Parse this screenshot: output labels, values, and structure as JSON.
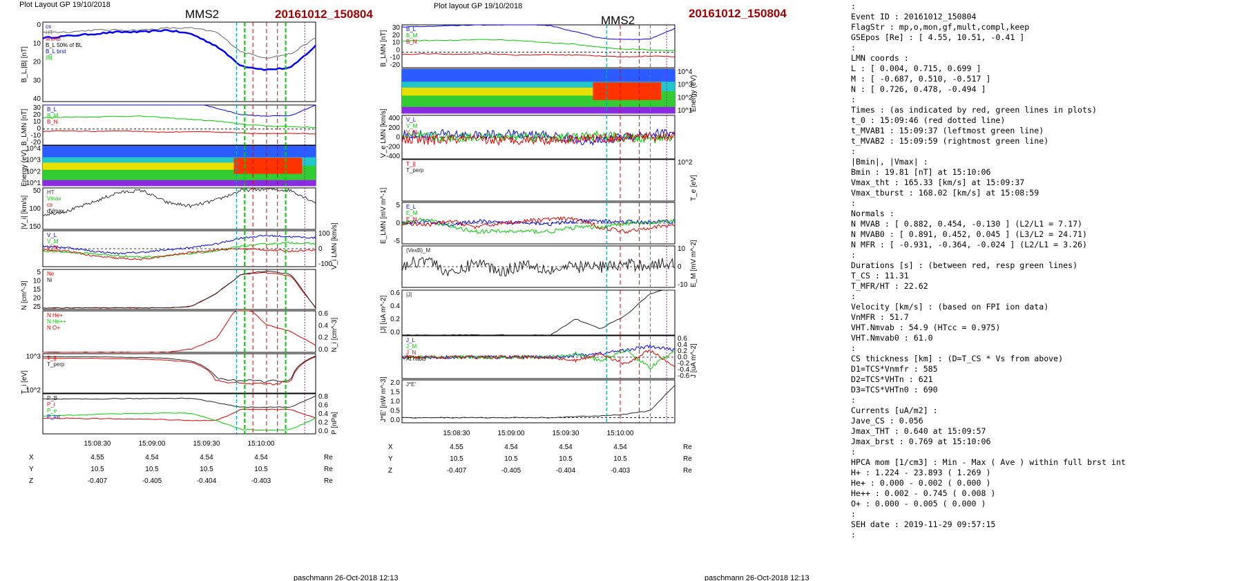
{
  "figure_left": {
    "header": "Plot Layout GP 19/10/2018",
    "sc": "MMS2",
    "event": "20161012_150804",
    "footer": "paschmann 26-Oct-2018 12:13"
  },
  "figure_mid": {
    "header": "Plot layout GP 19/10/2018",
    "sc": "MMS2",
    "event": "20161012_150804",
    "footer": "paschmann 26-Oct-2018 12:13"
  },
  "time_ticks": [
    "15:08:30",
    "15:09:00",
    "15:09:30",
    "15:10:00"
  ],
  "orbit_rows": [
    {
      "label": "X",
      "values": [
        "4.55",
        "4.54",
        "4.54",
        "4.54"
      ],
      "unit": "Re"
    },
    {
      "label": "Y",
      "values": [
        "10.5",
        "10.5",
        "10.5",
        "10.5"
      ],
      "unit": "Re"
    },
    {
      "label": "Z",
      "values": [
        "-0.407",
        "-0.405",
        "-0.404",
        "-0.403"
      ],
      "unit": "Re"
    }
  ],
  "orbit_rows_mid": [
    {
      "label": "X",
      "values": [
        "4.55",
        "4.54",
        "4.54",
        "4.54"
      ],
      "unit": "Re"
    },
    {
      "label": "Y",
      "values": [
        "10.5",
        "10.5",
        "10.5",
        "10.5"
      ],
      "unit": "Re"
    },
    {
      "label": "Z",
      "values": [
        "-0.407",
        "-0.405",
        "-0.404",
        "-0.403"
      ],
      "unit": "Re"
    }
  ],
  "colors": {
    "red": "#e00000",
    "green": "#00cc00",
    "blue": "#0000ff",
    "black": "#000000",
    "magenta": "#cc00cc",
    "title_red": "#a00000",
    "cyan": "#00aaaa"
  },
  "chart_data": [
    {
      "type": "line",
      "ylabel": "B_L,|B| [nT]",
      "ylim": [
        0,
        40
      ],
      "yticks": [
        "0",
        "10",
        "20",
        "30",
        "40"
      ],
      "legend": [
        "cs",
        "HT",
        "MVAB",
        "B_L 50% of BL",
        "B_L brst",
        "|B|"
      ],
      "series": [
        {
          "name": "B_L brst",
          "values": [
            32,
            33,
            34,
            35,
            35,
            36,
            34,
            28,
            18,
            16,
            17,
            28
          ]
        },
        {
          "name": "|B|",
          "values": [
            35,
            35,
            36,
            36,
            36,
            37,
            37,
            35,
            25,
            22,
            24,
            32
          ]
        }
      ]
    },
    {
      "type": "line",
      "ylabel": "B_LMN [nT]",
      "ylim": [
        -20,
        30
      ],
      "yticks": [
        "30",
        "20",
        "10",
        "0",
        "-10",
        "-20"
      ],
      "legend": [
        "B_L",
        "B_M",
        "B_N"
      ],
      "series": [
        {
          "name": "B_L",
          "values": [
            32,
            33,
            34,
            35,
            35,
            36,
            34,
            26,
            18,
            16,
            17,
            30
          ]
        },
        {
          "name": "B_M",
          "values": [
            14,
            15,
            15,
            16,
            16,
            14,
            12,
            10,
            6,
            4,
            3,
            2
          ]
        },
        {
          "name": "B_N",
          "values": [
            -3,
            -2,
            -3,
            -2,
            -3,
            -4,
            -3,
            -4,
            -5,
            -6,
            -5,
            -6
          ]
        }
      ]
    },
    {
      "type": "heatmap",
      "ylabel": "Energy (eV)",
      "yticks": [
        "10^4",
        "10^3",
        "10^2",
        "10^1"
      ]
    },
    {
      "type": "line",
      "ylabel": "|V_i| [km/s]",
      "ylim": [
        0,
        170
      ],
      "yticks": [
        "50",
        "100",
        "150"
      ],
      "legend": [
        "HT",
        "Vmax",
        "cs",
        "dVmax"
      ],
      "series": [
        {
          "name": "|V_i|",
          "values": [
            60,
            75,
            110,
            150,
            160,
            110,
            95,
            120,
            160,
            165,
            160,
            110
          ]
        }
      ]
    },
    {
      "type": "line",
      "ylabel": "V_i LMN [km/s]",
      "ylim": [
        -150,
        150
      ],
      "yticks": [
        "100",
        "0",
        "-100"
      ],
      "legend": [
        "V_L",
        "V_M",
        "V_N"
      ],
      "series": [
        {
          "name": "V_L",
          "values": [
            20,
            10,
            -20,
            -40,
            -30,
            -10,
            10,
            40,
            90,
            110,
            100,
            90
          ]
        },
        {
          "name": "V_M",
          "values": [
            -20,
            -30,
            -40,
            -60,
            -70,
            -60,
            -40,
            -20,
            20,
            40,
            50,
            40
          ]
        },
        {
          "name": "V_N",
          "values": [
            -10,
            -20,
            -60,
            -80,
            -90,
            -60,
            -30,
            -10,
            0,
            -10,
            -20,
            -10
          ]
        }
      ]
    },
    {
      "type": "line",
      "ylabel": "N [cm^-3]",
      "ylim": [
        0,
        25
      ],
      "yticks": [
        "5",
        "10",
        "15",
        "20",
        "25"
      ],
      "legend": [
        "Ne",
        "Ni"
      ],
      "series": [
        {
          "name": "Ne",
          "values": [
            1,
            1,
            1,
            1,
            1,
            1,
            2,
            10,
            22,
            23,
            21,
            1
          ]
        },
        {
          "name": "Ni",
          "values": [
            1,
            1,
            1,
            1,
            1,
            1,
            2,
            10,
            22,
            24,
            22,
            1
          ]
        }
      ]
    },
    {
      "type": "line",
      "ylabel": "N_i [cm^-3]",
      "ylim": [
        0,
        0.6
      ],
      "yticks": [
        "0.6",
        "0.4",
        "0.2",
        "0.0"
      ],
      "legend": [
        "N He+",
        "N He++",
        "N O+"
      ],
      "series": [
        {
          "name": "N He++",
          "values": [
            0,
            0,
            0,
            0,
            0,
            0,
            0.05,
            0.2,
            0.745,
            0.4,
            0.3,
            0.1
          ]
        }
      ]
    },
    {
      "type": "line",
      "ylabel": "T_i [eV]",
      "ylim": [
        50,
        2000
      ],
      "scale": "log",
      "yticks": [
        "10^3",
        "10^2"
      ],
      "legend": [
        "T_||",
        "T_perp"
      ],
      "series": [
        {
          "name": "T_||",
          "values": [
            1300,
            1300,
            1300,
            1250,
            1200,
            1100,
            900,
            150,
            130,
            120,
            140,
            1500
          ]
        },
        {
          "name": "T_perp",
          "values": [
            1500,
            1500,
            1500,
            1450,
            1400,
            1300,
            1000,
            200,
            160,
            150,
            170,
            1600
          ]
        }
      ]
    },
    {
      "type": "line",
      "ylabel": "P [nPa]",
      "ylim": [
        0,
        0.9
      ],
      "yticks": [
        "0.8",
        "0.6",
        "0.4",
        "0.2",
        "0.0"
      ],
      "legend": [
        "P_B",
        "P_i",
        "P_e",
        "P_tot"
      ],
      "series": [
        {
          "name": "P_tot",
          "values": [
            0.78,
            0.78,
            0.78,
            0.79,
            0.79,
            0.8,
            0.8,
            0.7,
            0.6,
            0.6,
            0.6,
            0.85
          ]
        },
        {
          "name": "P_i",
          "values": [
            0.35,
            0.35,
            0.34,
            0.34,
            0.33,
            0.32,
            0.3,
            0.3,
            0.55,
            0.55,
            0.55,
            0.35
          ]
        },
        {
          "name": "P_B",
          "values": [
            0.4,
            0.42,
            0.44,
            0.45,
            0.46,
            0.47,
            0.46,
            0.3,
            0.1,
            0.08,
            0.1,
            0.35
          ]
        }
      ]
    },
    {
      "type": "line",
      "ylabel": "B_LMN [nT]",
      "ylim": [
        -20,
        35
      ],
      "yticks": [
        "30",
        "20",
        "10",
        "0",
        "-10",
        "-20"
      ],
      "legend": [
        "B_L",
        "B_M",
        "B_N"
      ],
      "series": [
        {
          "name": "B_L",
          "values": [
            32,
            33,
            34,
            35,
            35,
            36,
            34,
            26,
            18,
            16,
            17,
            30
          ]
        },
        {
          "name": "B_M",
          "values": [
            14,
            15,
            15,
            16,
            16,
            14,
            12,
            10,
            6,
            4,
            3,
            2
          ]
        },
        {
          "name": "B_N",
          "values": [
            -3,
            -2,
            -3,
            -2,
            -3,
            -4,
            -3,
            -4,
            -5,
            -6,
            -5,
            -6
          ]
        }
      ]
    },
    {
      "type": "heatmap",
      "ylabel": "Energy (eV)",
      "yticks": [
        "10^4",
        "10^3",
        "10^2",
        "10^1"
      ]
    },
    {
      "type": "line",
      "ylabel": "V_e LMN [km/s]",
      "ylim": [
        -400,
        400
      ],
      "yticks": [
        "400",
        "200",
        "0",
        "-200",
        "-400"
      ],
      "legend": [
        "V_L",
        "V_M",
        "V_N"
      ],
      "series": [
        {
          "name": "V_L",
          "values": [
            50,
            40,
            60,
            30,
            50,
            40,
            30,
            -50,
            -80,
            20,
            60,
            90
          ]
        },
        {
          "name": "V_M",
          "values": [
            0,
            20,
            -20,
            10,
            0,
            20,
            -10,
            0,
            30,
            -20,
            -40,
            30
          ]
        },
        {
          "name": "V_N",
          "values": [
            -50,
            -60,
            -40,
            -50,
            -60,
            -40,
            -50,
            -30,
            -20,
            -10,
            10,
            20
          ]
        }
      ]
    },
    {
      "type": "line",
      "ylabel": "T_e [eV]",
      "scale": "log",
      "yticks": [
        "10^2"
      ],
      "legend": [
        "T_||",
        "T_perp"
      ],
      "series": [
        {
          "name": "T_||",
          "values": [
            700,
            700,
            690,
            680,
            400,
            350,
            300,
            180,
            60,
            55,
            60,
            500
          ]
        },
        {
          "name": "T_perp",
          "values": [
            720,
            720,
            710,
            700,
            420,
            360,
            310,
            190,
            65,
            60,
            65,
            520
          ]
        }
      ]
    },
    {
      "type": "line",
      "ylabel": "E_LMN [mV m^-1]",
      "ylim": [
        -5,
        5
      ],
      "yticks": [
        "5",
        "0",
        "-5"
      ],
      "legend": [
        "E_L",
        "E_M",
        "E_N"
      ],
      "series": [
        {
          "name": "E_L",
          "values": [
            0,
            0.5,
            -0.5,
            0.5,
            0,
            0.3,
            -0.2,
            0.4,
            0.5,
            0.3,
            0.2,
            0.5
          ]
        },
        {
          "name": "E_M",
          "values": [
            0,
            1,
            -1,
            -2,
            -2,
            -2,
            -2,
            -1,
            -1,
            0,
            0,
            0.5
          ]
        },
        {
          "name": "E_N",
          "values": [
            0,
            -0.5,
            0.5,
            -1,
            0,
            0.5,
            1,
            1,
            -1,
            -2,
            -1,
            -0.5
          ]
        }
      ]
    },
    {
      "type": "line",
      "ylabel": "E_M [mV m^-2]",
      "ylim": [
        -12,
        12
      ],
      "yticks": [
        "10",
        "0",
        "-10"
      ],
      "legend": [
        "(VexB)_M"
      ],
      "series": [
        {
          "name": "(VexB)_M",
          "values": [
            0,
            5,
            -5,
            3,
            -3,
            2,
            -2,
            0,
            0,
            1,
            1,
            2
          ]
        }
      ]
    },
    {
      "type": "line",
      "ylabel": "|J| [uA m^-2]",
      "ylim": [
        0,
        0.7
      ],
      "yticks": [
        "0.6",
        "0.4",
        "0.2",
        "0.0"
      ],
      "legend": [
        "|J|"
      ],
      "series": [
        {
          "name": "|J|",
          "values": [
            0,
            0,
            0,
            0,
            0,
            0,
            0,
            0.25,
            0.1,
            0.3,
            0.64,
            0.769
          ]
        }
      ]
    },
    {
      "type": "line",
      "ylabel": "J [uA m^-2]",
      "ylim": [
        -0.6,
        0.6
      ],
      "yticks": [
        "0.6",
        "0.4",
        "0.2",
        "0.0",
        "-0.2",
        "-0.4",
        "-0.6"
      ],
      "legend": [
        "J_L",
        "J_M",
        "J_N",
        "At maxJ"
      ],
      "series": [
        {
          "name": "J_L",
          "values": [
            0,
            0,
            0,
            0,
            0,
            0,
            0,
            0.05,
            0.1,
            0.2,
            0.3,
            0.2
          ]
        },
        {
          "name": "J_M",
          "values": [
            0,
            0,
            0,
            0,
            0,
            0,
            0,
            0.1,
            -0.1,
            0.2,
            -0.3,
            0.2
          ]
        },
        {
          "name": "J_N",
          "values": [
            0,
            0,
            0,
            0,
            0,
            0,
            0,
            -0.1,
            0.1,
            -0.2,
            0.2,
            -0.3
          ]
        }
      ]
    },
    {
      "type": "line",
      "ylabel": "J*E' [nW m^-3]",
      "ylim": [
        -0.3,
        2.2
      ],
      "yticks": [
        "2.0",
        "1.5",
        "1.0",
        "0.5",
        "0.0"
      ],
      "legend": [
        "J*E'"
      ],
      "series": [
        {
          "name": "J*E'",
          "values": [
            0,
            0,
            0,
            0,
            0,
            0,
            0,
            0.05,
            0.1,
            0.2,
            0.4,
            1.9
          ]
        }
      ]
    }
  ],
  "info_text": [
    ":",
    " Event ID             : 20161012_150804",
    " FlagStr              : mp,o,mon,gf,mult,compl,keep",
    " GSEpos [Re]          : [ 4.55, 10.51, -0.41 ]",
    "                      :",
    " LMN coords           :",
    "    L                 : [  0.004,  0.715,  0.699 ]",
    "    M                 : [ -0.687,  0.510, -0.517 ]",
    "    N                 : [  0.726,  0.478, -0.494 ]",
    "                      :",
    "  Times               : (as indicated by red, green lines in plots)",
    "    t_0               : 15:09:46  (red dotted line)",
    "    t_MVAB1           : 15:09:37  (leftmost green line)",
    "    t_MVAB2           : 15:09:59  (rightmost green line)",
    "                      :",
    "|Bmin|, |Vmax|        :",
    "    Bmin              : 19.81 [nT]  at 15:10:06",
    "    Vmax_tht          : 165.33 [km/s]  at 15:09:37",
    "    Vmax_tburst       : 168.02 [km/s]  at 15:08:59",
    "                      :",
    " Normals              :",
    "    N MVAB            : [  0.882,  0.454, -0.130 ]   (L2/L1 = 7.17)",
    "    N MVAB0           : [  0.891,  0.452,  0.045 ]   (L3/L2 = 24.71)",
    "    N MFR             : [ -0.931, -0.364, -0.024 ]   (L2/L1 = 3.26)",
    "                      :",
    " Durations [s]        : (between red, resp green lines)",
    "    T_CS              : 11.31",
    "    T_MFR/HT          : 22.62",
    "                      :",
    " Velocity [km/s]      : (based on FPI ion data)",
    "    VnMFR             : 51.7",
    "    VHT.Nmvab         : 54.9  (HTcc = 0.975)",
    "    VHT.Nmvab0        : 61.0",
    "                      :",
    " CS thickness [km]    : (D=T_CS * Vs from above)",
    "    D1=TCS*Vnmfr      : 585",
    "    D2=TCS*VHTn       : 621",
    "    D3=TCS*VHTn0      : 690",
    "                      :",
    " Currents [uA/m2]     :",
    "    Jave_CS           : 0.056",
    "    Jmax_THT          : 0.640  at 15:09:57",
    "    Jmax_brst         : 0.769  at 15:10:06",
    "                      :",
    " HPCA mom [1/cm3]     :   Min   -  Max    (  Ave   )  within full brst int",
    "    H+                :   1.224 - 23.893  (  1.269 )",
    "    He+               :   0.000 -  0.002  (  0.000 )",
    "    He++              :   0.002 -  0.745  (  0.008 )",
    "    O+                :   0.000 -  0.005  (  0.000 )",
    "                      :",
    " SEH date             : 2019-11-29 09:57:15",
    "                      :"
  ]
}
